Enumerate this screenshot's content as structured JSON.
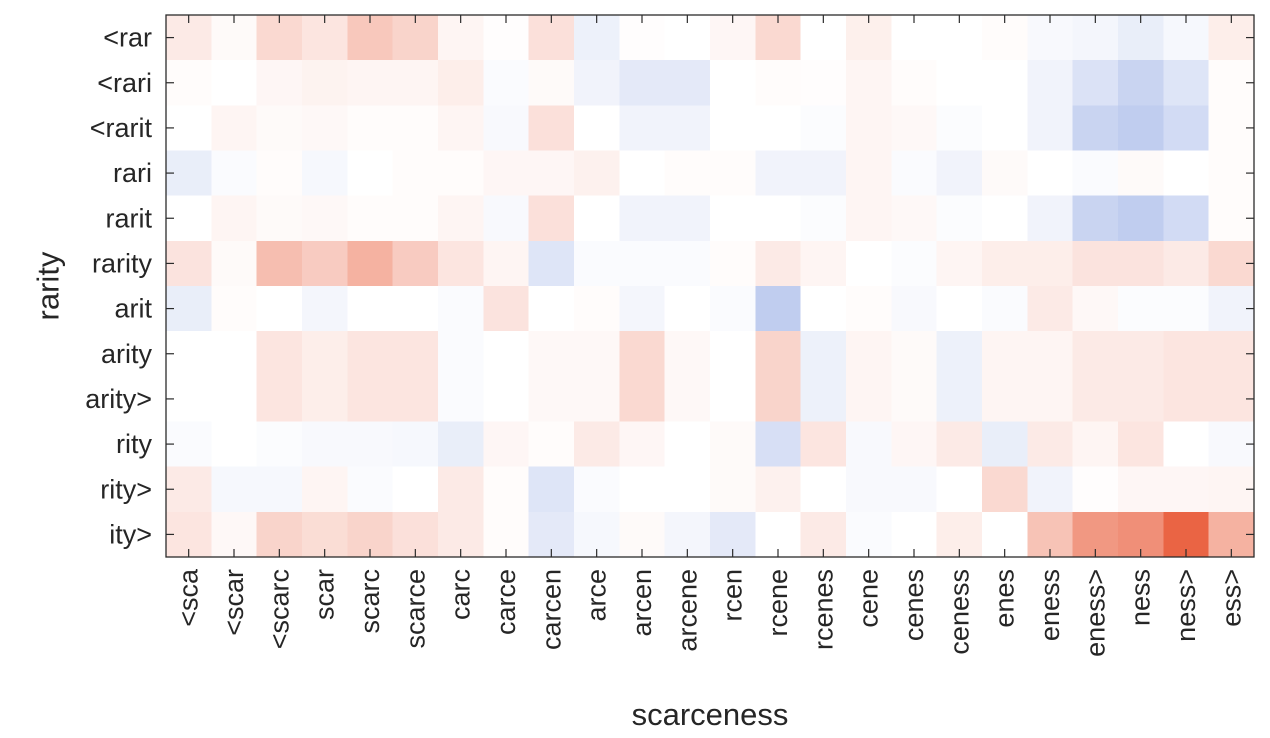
{
  "chart_data": {
    "type": "heatmap",
    "xlabel": "scarceness",
    "ylabel": "rarity",
    "x_categories": [
      "<sca",
      "<scar",
      "<scarc",
      "scar",
      "scarc",
      "scarce",
      "carc",
      "carce",
      "carcen",
      "arce",
      "arcen",
      "arcene",
      "rcen",
      "rcene",
      "rcenes",
      "cene",
      "cenes",
      "ceness",
      "enes",
      "eness",
      "eness>",
      "ness",
      "ness>",
      "ess>"
    ],
    "y_categories": [
      "<rar",
      "<rari",
      "<rarit",
      "rari",
      "rarit",
      "rarity",
      "arit",
      "arity",
      "arity>",
      "rity",
      "rity>",
      "ity>"
    ],
    "color_scale": {
      "min": -1,
      "max": 1,
      "negative": "#4a6fd1",
      "neutral": "#ffffff",
      "positive": "#e8532f"
    },
    "values": [
      [
        0.12,
        0.03,
        0.22,
        0.15,
        0.32,
        0.25,
        0.06,
        0.01,
        0.18,
        -0.1,
        0.01,
        0.0,
        0.05,
        0.22,
        0.0,
        0.09,
        0.0,
        0.0,
        0.02,
        -0.04,
        -0.06,
        -0.12,
        -0.05,
        0.1
      ],
      [
        0.02,
        0.0,
        0.05,
        0.07,
        0.06,
        0.06,
        0.1,
        -0.03,
        0.03,
        -0.08,
        -0.15,
        -0.15,
        0.0,
        0.02,
        0.01,
        0.06,
        0.02,
        0.0,
        0.0,
        -0.08,
        -0.2,
        -0.3,
        -0.18,
        0.02
      ],
      [
        0.0,
        0.06,
        0.03,
        0.04,
        0.02,
        0.02,
        0.06,
        -0.04,
        0.18,
        0.0,
        -0.08,
        -0.08,
        0.0,
        0.0,
        -0.02,
        0.06,
        0.04,
        -0.02,
        0.0,
        -0.08,
        -0.3,
        -0.35,
        -0.25,
        0.02
      ],
      [
        -0.12,
        -0.03,
        0.02,
        -0.05,
        0.0,
        0.02,
        0.02,
        0.05,
        0.05,
        0.08,
        0.0,
        0.02,
        0.02,
        -0.08,
        -0.08,
        0.06,
        -0.03,
        -0.08,
        0.03,
        0.0,
        -0.03,
        0.03,
        0.0,
        0.02
      ],
      [
        0.0,
        0.06,
        0.03,
        0.04,
        0.02,
        0.02,
        0.06,
        -0.04,
        0.18,
        0.0,
        -0.08,
        -0.08,
        0.0,
        0.0,
        -0.02,
        0.06,
        0.04,
        -0.02,
        0.0,
        -0.08,
        -0.3,
        -0.35,
        -0.25,
        0.02
      ],
      [
        0.16,
        0.03,
        0.38,
        0.3,
        0.45,
        0.3,
        0.15,
        0.06,
        -0.18,
        -0.03,
        -0.03,
        -0.03,
        0.02,
        0.12,
        0.06,
        0.0,
        -0.02,
        0.06,
        0.1,
        0.1,
        0.16,
        0.16,
        0.12,
        0.22
      ],
      [
        -0.12,
        0.02,
        0.0,
        -0.06,
        0.0,
        0.0,
        -0.03,
        0.16,
        0.0,
        0.02,
        -0.06,
        0.0,
        -0.03,
        -0.35,
        0.0,
        0.02,
        -0.04,
        0.0,
        -0.03,
        0.12,
        0.04,
        -0.02,
        -0.02,
        -0.08
      ],
      [
        0.0,
        0.0,
        0.15,
        0.1,
        0.15,
        0.15,
        -0.03,
        0.0,
        0.04,
        0.04,
        0.22,
        0.04,
        0.0,
        0.25,
        -0.1,
        0.06,
        0.03,
        -0.1,
        0.06,
        0.06,
        0.12,
        0.12,
        0.15,
        0.15
      ],
      [
        0.0,
        0.0,
        0.15,
        0.1,
        0.15,
        0.15,
        -0.03,
        0.0,
        0.04,
        0.04,
        0.22,
        0.04,
        0.0,
        0.25,
        -0.1,
        0.06,
        0.03,
        -0.1,
        0.06,
        0.06,
        0.12,
        0.12,
        0.15,
        0.15
      ],
      [
        -0.03,
        0.0,
        -0.02,
        -0.04,
        -0.04,
        -0.05,
        -0.12,
        0.05,
        0.02,
        0.12,
        0.05,
        0.0,
        0.03,
        -0.22,
        0.15,
        -0.04,
        0.05,
        0.12,
        -0.12,
        0.12,
        0.06,
        0.15,
        0.0,
        -0.04
      ],
      [
        0.12,
        -0.05,
        -0.05,
        0.06,
        -0.03,
        0.0,
        0.12,
        0.02,
        -0.18,
        -0.03,
        0.0,
        0.0,
        0.03,
        0.08,
        0.0,
        -0.04,
        -0.04,
        0.0,
        0.22,
        -0.08,
        0.01,
        0.05,
        0.05,
        0.06
      ],
      [
        0.15,
        0.04,
        0.25,
        0.2,
        0.25,
        0.18,
        0.12,
        0.02,
        -0.15,
        -0.05,
        0.03,
        -0.06,
        -0.15,
        0.0,
        0.12,
        -0.03,
        0.0,
        0.1,
        0.0,
        0.35,
        0.6,
        0.65,
        0.9,
        0.45
      ]
    ]
  }
}
